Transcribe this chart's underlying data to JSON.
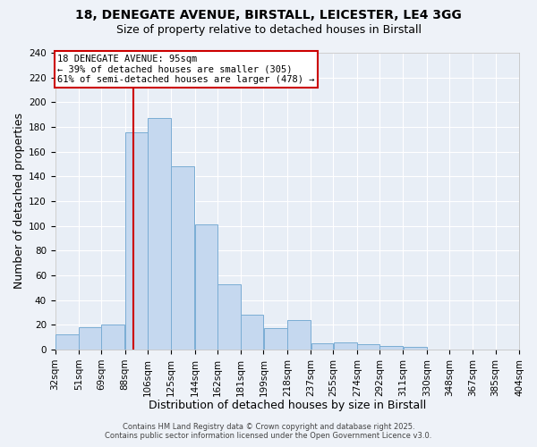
{
  "title1": "18, DENEGATE AVENUE, BIRSTALL, LEICESTER, LE4 3GG",
  "title2": "Size of property relative to detached houses in Birstall",
  "xlabel": "Distribution of detached houses by size in Birstall",
  "ylabel": "Number of detached properties",
  "bar_left_edges": [
    32,
    51,
    69,
    88,
    106,
    125,
    144,
    162,
    181,
    199,
    218,
    237,
    255,
    274,
    292,
    311,
    330,
    348,
    367,
    385
  ],
  "bar_widths": [
    19,
    18,
    19,
    18,
    19,
    19,
    18,
    19,
    18,
    19,
    19,
    18,
    19,
    18,
    19,
    19,
    18,
    19,
    18,
    19
  ],
  "bar_heights": [
    12,
    18,
    20,
    176,
    187,
    148,
    101,
    53,
    28,
    17,
    24,
    5,
    6,
    4,
    3,
    2,
    0,
    0,
    0,
    0
  ],
  "bar_color": "#c5d8ef",
  "bar_edgecolor": "#7aadd4",
  "xlim": [
    32,
    404
  ],
  "ylim": [
    0,
    240
  ],
  "yticks": [
    0,
    20,
    40,
    60,
    80,
    100,
    120,
    140,
    160,
    180,
    200,
    220,
    240
  ],
  "xtick_labels": [
    "32sqm",
    "51sqm",
    "69sqm",
    "88sqm",
    "106sqm",
    "125sqm",
    "144sqm",
    "162sqm",
    "181sqm",
    "199sqm",
    "218sqm",
    "237sqm",
    "255sqm",
    "274sqm",
    "292sqm",
    "311sqm",
    "330sqm",
    "348sqm",
    "367sqm",
    "385sqm",
    "404sqm"
  ],
  "xtick_positions": [
    32,
    51,
    69,
    88,
    106,
    125,
    144,
    162,
    181,
    199,
    218,
    237,
    255,
    274,
    292,
    311,
    330,
    348,
    367,
    385,
    404
  ],
  "vline_x": 95,
  "vline_color": "#cc0000",
  "annotation_title": "18 DENEGATE AVENUE: 95sqm",
  "annotation_line2": "← 39% of detached houses are smaller (305)",
  "annotation_line3": "61% of semi-detached houses are larger (478) →",
  "footer1": "Contains HM Land Registry data © Crown copyright and database right 2025.",
  "footer2": "Contains public sector information licensed under the Open Government Licence v3.0.",
  "bg_color": "#eef2f8",
  "plot_bg_color": "#e8eef6",
  "grid_color": "#ffffff",
  "title_fontsize": 10,
  "subtitle_fontsize": 9,
  "axis_label_fontsize": 9,
  "tick_fontsize": 7.5,
  "footer_fontsize": 6
}
